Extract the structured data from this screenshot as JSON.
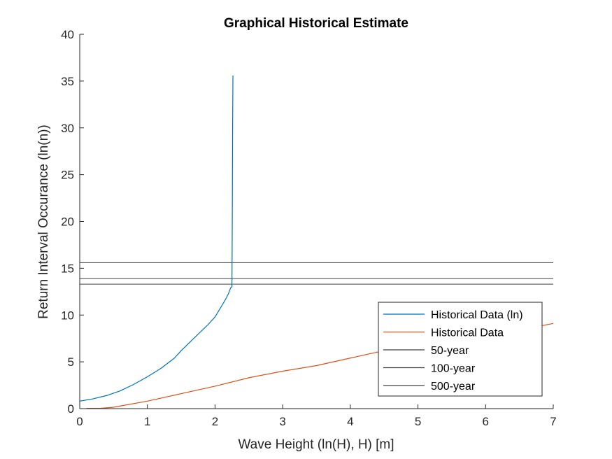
{
  "chart_data": {
    "type": "line",
    "title": "Graphical Historical Estimate",
    "xlabel": "Wave Height (ln(H), H) [m]",
    "ylabel": "Return Interval Occurance (ln(n))",
    "xlim": [
      0,
      7
    ],
    "ylim": [
      0,
      40
    ],
    "xticks": [
      "0",
      "1",
      "2",
      "3",
      "4",
      "5",
      "6",
      "7"
    ],
    "yticks": [
      "0",
      "5",
      "10",
      "15",
      "20",
      "25",
      "30",
      "35",
      "40"
    ],
    "grid": false,
    "legend_position": "bottom-right",
    "series": [
      {
        "name": "Historical Data (ln)",
        "color": "#0072BD",
        "points": [
          [
            0,
            0.8
          ],
          [
            0.2,
            1.05
          ],
          [
            0.4,
            1.4
          ],
          [
            0.6,
            1.9
          ],
          [
            0.8,
            2.6
          ],
          [
            1.0,
            3.4
          ],
          [
            1.2,
            4.3
          ],
          [
            1.4,
            5.4
          ],
          [
            1.5,
            6.2
          ],
          [
            1.6,
            6.9
          ],
          [
            1.7,
            7.6
          ],
          [
            1.8,
            8.3
          ],
          [
            1.9,
            9.0
          ],
          [
            2.0,
            9.8
          ],
          [
            2.05,
            10.4
          ],
          [
            2.1,
            11.0
          ],
          [
            2.15,
            11.6
          ],
          [
            2.2,
            12.3
          ],
          [
            2.23,
            12.9
          ],
          [
            2.25,
            13.0
          ],
          [
            2.255,
            20.0
          ],
          [
            2.26,
            30.0
          ],
          [
            2.265,
            35.6
          ]
        ]
      },
      {
        "name": "Historical Data",
        "color": "#D95319",
        "points": [
          [
            0.1,
            0.03
          ],
          [
            0.3,
            0.03
          ],
          [
            0.5,
            0.15
          ],
          [
            1.0,
            0.8
          ],
          [
            1.5,
            1.6
          ],
          [
            2.0,
            2.4
          ],
          [
            2.5,
            3.3
          ],
          [
            3.0,
            4.0
          ],
          [
            3.5,
            4.6
          ],
          [
            4.0,
            5.4
          ],
          [
            4.5,
            6.2
          ],
          [
            5.0,
            6.8
          ],
          [
            5.5,
            7.4
          ],
          [
            6.0,
            7.9
          ],
          [
            6.5,
            8.4
          ],
          [
            7.0,
            9.1
          ]
        ]
      },
      {
        "name": "50-year",
        "color": "#404040",
        "y": 13.3
      },
      {
        "name": "100-year",
        "color": "#404040",
        "y": 13.9
      },
      {
        "name": "500-year",
        "color": "#404040",
        "y": 15.6
      }
    ]
  }
}
